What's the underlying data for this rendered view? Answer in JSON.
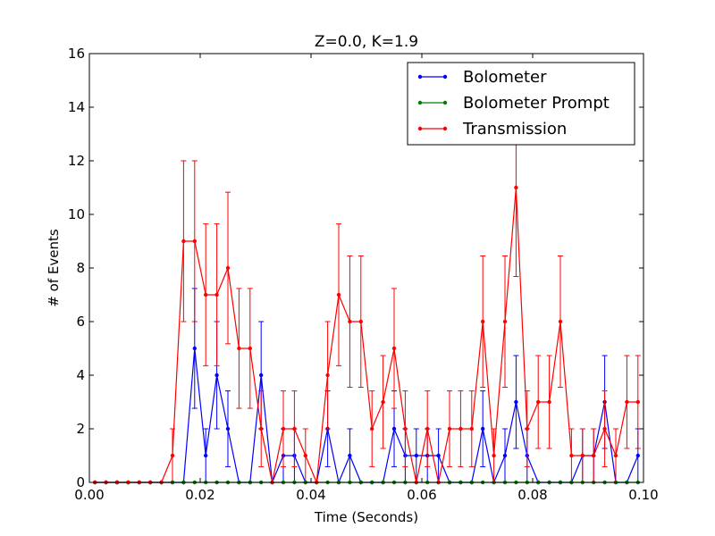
{
  "chart_data": {
    "type": "line",
    "title": "Z=0.0, K=1.9",
    "xlabel": "Time (Seconds)",
    "ylabel": "# of Events",
    "xlim": [
      0.0,
      0.1
    ],
    "ylim": [
      0,
      16
    ],
    "xticks": [
      "0.00",
      "0.02",
      "0.04",
      "0.06",
      "0.08",
      "0.10"
    ],
    "yticks": [
      "0",
      "2",
      "4",
      "6",
      "8",
      "10",
      "12",
      "14",
      "16"
    ],
    "grid": false,
    "legend_position": "top-right",
    "x": [
      0.001,
      0.003,
      0.005,
      0.007,
      0.009,
      0.011,
      0.013,
      0.015,
      0.017,
      0.019,
      0.021,
      0.023,
      0.025,
      0.027,
      0.029,
      0.031,
      0.033,
      0.035,
      0.037,
      0.039,
      0.041,
      0.043,
      0.045,
      0.047,
      0.049,
      0.051,
      0.053,
      0.055,
      0.057,
      0.059,
      0.061,
      0.063,
      0.065,
      0.067,
      0.069,
      0.071,
      0.073,
      0.075,
      0.077,
      0.079,
      0.081,
      0.083,
      0.085,
      0.087,
      0.089,
      0.091,
      0.093,
      0.095,
      0.097,
      0.099
    ],
    "series": [
      {
        "name": "Bolometer",
        "color": "#0000ff",
        "values": [
          0,
          0,
          0,
          0,
          0,
          0,
          0,
          0,
          0,
          5,
          1,
          4,
          2,
          0,
          0,
          4,
          0,
          1,
          1,
          0,
          0,
          2,
          0,
          1,
          0,
          0,
          0,
          2,
          1,
          1,
          1,
          1,
          0,
          0,
          0,
          2,
          0,
          1,
          3,
          1,
          0,
          0,
          0,
          0,
          1,
          1,
          3,
          0,
          0,
          1
        ]
      },
      {
        "name": "Bolometer Prompt",
        "color": "#008000",
        "values": [
          0,
          0,
          0,
          0,
          0,
          0,
          0,
          0,
          0,
          0,
          0,
          0,
          0,
          0,
          0,
          0,
          0,
          0,
          0,
          0,
          0,
          0,
          0,
          0,
          0,
          0,
          0,
          0,
          0,
          0,
          0,
          0,
          0,
          0,
          0,
          0,
          0,
          0,
          0,
          0,
          0,
          0,
          0,
          0,
          0,
          0,
          0,
          0,
          0,
          0
        ]
      },
      {
        "name": "Transmission",
        "color": "#ff0000",
        "values": [
          0,
          0,
          0,
          0,
          0,
          0,
          0,
          1,
          9,
          9,
          7,
          7,
          8,
          5,
          5,
          2,
          0,
          2,
          2,
          1,
          0,
          4,
          7,
          6,
          6,
          2,
          3,
          5,
          2,
          0,
          2,
          0,
          2,
          2,
          2,
          6,
          1,
          6,
          11,
          2,
          3,
          3,
          6,
          1,
          1,
          1,
          2,
          1,
          3,
          3
        ]
      }
    ]
  }
}
